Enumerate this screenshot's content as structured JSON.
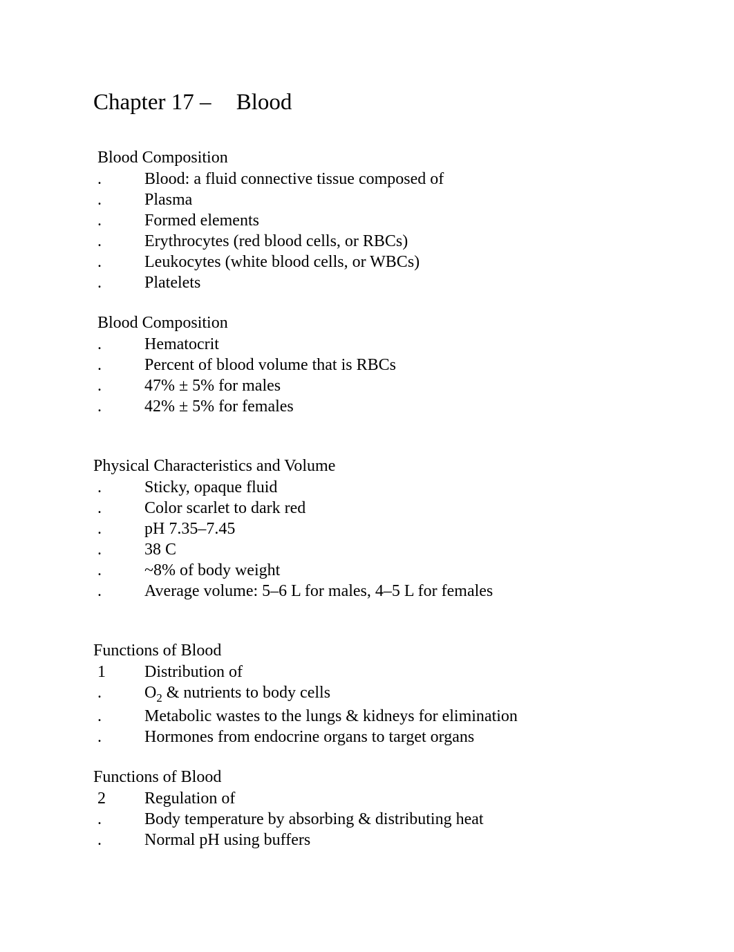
{
  "chapter_label": "Chapter 17 –",
  "chapter_title": "Blood",
  "sections": {
    "s1": {
      "heading": " Blood Composition",
      "items": [
        "Blood: a fluid connective tissue composed of",
        "Plasma",
        "Formed elements",
        "Erythrocytes (red blood cells, or RBCs)",
        "Leukocytes (white blood cells, or WBCs)",
        "Platelets"
      ]
    },
    "s2": {
      "heading": " Blood Composition",
      "items": [
        "Hematocrit",
        "Percent of blood volume that is RBCs",
        "47% ± 5% for males",
        "42% ± 5% for females"
      ]
    },
    "s3": {
      "heading": "Physical Characteristics and Volume",
      "items": [
        "Sticky, opaque fluid",
        "Color scarlet to dark red",
        "pH 7.35–7.45",
        "38 C",
        "~8% of body weight",
        "Average volume: 5–6 L for males, 4–5 L for females"
      ]
    },
    "s4": {
      "heading": "Functions of Blood",
      "marker": "1",
      "lead": "Distribution of",
      "items_html": [
        "O<sub>2</sub> & nutrients to body cells",
        "Metabolic wastes to the lungs & kidneys for elimination",
        "Hormones from endocrine organs to target organs"
      ]
    },
    "s5": {
      "heading": "Functions of Blood",
      "marker": "2",
      "lead": "Regulation of",
      "items": [
        "Body temperature by absorbing & distributing heat",
        "Normal pH using buffers"
      ]
    }
  }
}
